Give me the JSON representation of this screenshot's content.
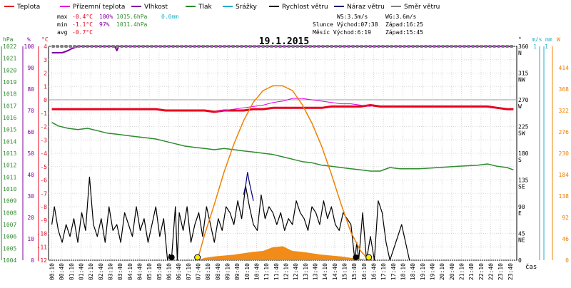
{
  "legend": [
    {
      "label": "Teplota",
      "color": "#e8001c"
    },
    {
      "label": "Přízemní teplota",
      "color": "#e000e0"
    },
    {
      "label": "Vlhkost",
      "color": "#8000a0"
    },
    {
      "label": "Tlak",
      "color": "#2e8b2e"
    },
    {
      "label": "Srážky",
      "color": "#20b0c8"
    },
    {
      "label": "Rychlost větru",
      "color": "#000000"
    },
    {
      "label": "Náraz větru",
      "color": "#00007a"
    },
    {
      "label": "Směr větru",
      "color": "#808080"
    }
  ],
  "stats": {
    "max": {
      "label": "max",
      "temp": "-0.4°C",
      "hum": "100%",
      "press": "1015.6hPa",
      "rain": "0.0mm"
    },
    "min": {
      "label": "min",
      "temp": "-1.1°C",
      "hum": "97%",
      "press": "1011.4hPa"
    },
    "avg": {
      "label": "avg",
      "temp": "-0.7°C"
    }
  },
  "info": {
    "ws": "WS:3.5m/s",
    "wg": "WG:3.6m/s",
    "sun_rise": "Slunce Východ:07:38",
    "sun_set": "Západ:16:25",
    "moon_rise": "Měsíc  Východ:6:19",
    "moon_set": "Západ:15:45"
  },
  "chart_data": {
    "type": "line",
    "title": "19.1.2015",
    "xlabel": "čas",
    "x_ticks": [
      "00:10",
      "00:40",
      "01:10",
      "01:40",
      "02:10",
      "02:40",
      "03:10",
      "03:40",
      "04:10",
      "04:40",
      "05:10",
      "05:40",
      "06:10",
      "06:40",
      "07:10",
      "07:40",
      "08:10",
      "08:40",
      "09:10",
      "09:40",
      "10:10",
      "10:40",
      "11:10",
      "11:40",
      "12:10",
      "12:40",
      "13:10",
      "13:40",
      "14:10",
      "14:40",
      "15:10",
      "15:40",
      "16:10",
      "16:40",
      "17:10",
      "17:40",
      "18:10",
      "18:40",
      "19:10",
      "19:40",
      "20:10",
      "20:40",
      "21:10",
      "21:40",
      "22:10",
      "22:40",
      "23:10",
      "23:40"
    ],
    "axes": {
      "hpa": {
        "unit": "hPa",
        "min": 1004,
        "max": 1022,
        "ticks": [
          1004,
          1005,
          1006,
          1007,
          1008,
          1009,
          1010,
          1011,
          1012,
          1013,
          1014,
          1015,
          1016,
          1017,
          1018,
          1019,
          1020,
          1021,
          1022
        ],
        "color": "#2e8b2e"
      },
      "pct": {
        "unit": "%",
        "min": 0,
        "max": 100,
        "ticks": [
          0,
          10,
          20,
          30,
          40,
          50,
          60,
          70,
          80,
          90,
          100
        ],
        "color": "#8000a0"
      },
      "temp": {
        "unit": "°C",
        "min": -12,
        "max": 4,
        "ticks": [
          -12,
          -11,
          -10,
          -9,
          -8,
          -7,
          -6,
          -5,
          -4,
          -3,
          -2,
          -1,
          0,
          1,
          2,
          3,
          4
        ],
        "color": "#e8001c"
      },
      "dir": {
        "unit": "°",
        "min": 0,
        "max": 360,
        "ticks": [
          0,
          45,
          90,
          135,
          180,
          225,
          270,
          315,
          360
        ],
        "labels": [
          "",
          "NE",
          "E",
          "SE",
          "S",
          "SW",
          "W",
          "NW",
          "N"
        ],
        "color": "#000000"
      },
      "wind": {
        "unit": "m/s",
        "min": 0,
        "max": 1,
        "ticks": [
          1
        ],
        "color": "#20b0c8"
      },
      "rain": {
        "unit": "mm",
        "min": 0,
        "max": 1,
        "ticks": [
          1
        ],
        "color": "#20b0c8"
      },
      "solar": {
        "unit": "W",
        "min": 0,
        "max": 460,
        "ticks": [
          0,
          46,
          92,
          138,
          184,
          230,
          276,
          322,
          368,
          414
        ],
        "color": "#f08000"
      }
    },
    "series": [
      {
        "name": "Teplota",
        "axis": "temp",
        "color": "#e8001c",
        "x": [
          0.17,
          1,
          2,
          3,
          4,
          5,
          5.5,
          6,
          6.5,
          7,
          7.5,
          8,
          8.5,
          9,
          9.5,
          10,
          10.5,
          11,
          11.5,
          12,
          12.5,
          13,
          13.5,
          14,
          14.5,
          15,
          15.5,
          16,
          16.5,
          17,
          18,
          19,
          20,
          21,
          22,
          22.5,
          23,
          23.5,
          23.83
        ],
        "y": [
          -0.7,
          -0.7,
          -0.7,
          -0.7,
          -0.7,
          -0.7,
          -0.7,
          -0.8,
          -0.8,
          -0.8,
          -0.8,
          -0.8,
          -0.9,
          -0.8,
          -0.8,
          -0.8,
          -0.7,
          -0.7,
          -0.6,
          -0.6,
          -0.6,
          -0.6,
          -0.6,
          -0.6,
          -0.5,
          -0.5,
          -0.5,
          -0.5,
          -0.4,
          -0.5,
          -0.5,
          -0.5,
          -0.5,
          -0.5,
          -0.5,
          -0.5,
          -0.6,
          -0.7,
          -0.7
        ]
      },
      {
        "name": "Přízemní teplota",
        "axis": "temp",
        "color": "#e000e0",
        "x": [
          8.5,
          9,
          9.5,
          10,
          10.5,
          11,
          11.5,
          12,
          12.5,
          13,
          13.5,
          14,
          14.5,
          15,
          15.5,
          16,
          16.5
        ],
        "y": [
          -0.9,
          -0.8,
          -0.7,
          -0.6,
          -0.5,
          -0.4,
          -0.2,
          -0.1,
          0.1,
          0.1,
          0.0,
          -0.1,
          -0.2,
          -0.3,
          -0.3,
          -0.4,
          -0.5
        ]
      },
      {
        "name": "Vlhkost",
        "axis": "pct",
        "color": "#8000a0",
        "x": [
          0.17,
          0.7,
          1.0,
          1.2,
          1.5,
          2,
          3,
          3.4,
          3.5,
          3.6,
          4,
          6,
          10,
          15,
          20,
          23.83
        ],
        "y": [
          97,
          97,
          98,
          99,
          100,
          100,
          100,
          100,
          98,
          100,
          100,
          100,
          100,
          100,
          100,
          100
        ]
      },
      {
        "name": "Tlak",
        "axis": "hpa",
        "color": "#2e8b2e",
        "x": [
          0.17,
          0.5,
          1,
          1.5,
          2,
          2.5,
          3,
          3.5,
          4,
          4.5,
          5,
          5.5,
          6,
          6.5,
          7,
          7.5,
          8,
          8.5,
          9,
          9.5,
          10,
          10.5,
          11,
          11.5,
          12,
          12.5,
          13,
          13.5,
          14,
          14.5,
          15,
          15.5,
          16,
          16.5,
          17,
          17.5,
          18,
          19,
          20,
          21,
          22,
          22.5,
          23,
          23.5,
          23.83
        ],
        "y": [
          1015.6,
          1015.3,
          1015.1,
          1015.0,
          1015.1,
          1014.9,
          1014.7,
          1014.6,
          1014.5,
          1014.4,
          1014.3,
          1014.2,
          1014.0,
          1013.8,
          1013.6,
          1013.5,
          1013.4,
          1013.3,
          1013.4,
          1013.3,
          1013.2,
          1013.1,
          1013.0,
          1012.9,
          1012.7,
          1012.5,
          1012.3,
          1012.2,
          1012.0,
          1011.9,
          1011.8,
          1011.7,
          1011.6,
          1011.5,
          1011.5,
          1011.8,
          1011.7,
          1011.7,
          1011.8,
          1011.9,
          1012.0,
          1012.1,
          1011.9,
          1011.8,
          1011.6
        ]
      },
      {
        "name": "Rychlost větru",
        "axis": "dir",
        "color": "#000000",
        "x": [
          0.17,
          0.3,
          0.5,
          0.7,
          0.9,
          1.1,
          1.3,
          1.5,
          1.7,
          1.9,
          2.1,
          2.3,
          2.5,
          2.7,
          2.9,
          3.1,
          3.3,
          3.5,
          3.7,
          3.9,
          4.1,
          4.3,
          4.5,
          4.7,
          4.9,
          5.1,
          5.3,
          5.5,
          5.7,
          5.9,
          6.1,
          6.2,
          6.3,
          6.5,
          6.6,
          6.7,
          6.9,
          7.1,
          7.3,
          7.5,
          7.7,
          7.9,
          8.1,
          8.3,
          8.5,
          8.7,
          8.9,
          9.1,
          9.3,
          9.5,
          9.7,
          9.9,
          10.1,
          10.3,
          10.5,
          10.7,
          10.9,
          11.1,
          11.3,
          11.5,
          11.7,
          11.9,
          12.1,
          12.3,
          12.5,
          12.7,
          12.9,
          13.1,
          13.3,
          13.5,
          13.7,
          13.9,
          14.1,
          14.3,
          14.5,
          14.7,
          14.9,
          15.1,
          15.3,
          15.5,
          15.7,
          15.8,
          15.9,
          16.1,
          16.3,
          16.5,
          16.7,
          16.9,
          17.1,
          17.3,
          17.5,
          17.7,
          17.9,
          18.1,
          18.3,
          18.5
        ],
        "y": [
          60,
          90,
          50,
          30,
          60,
          40,
          70,
          30,
          80,
          50,
          140,
          60,
          40,
          70,
          30,
          90,
          50,
          60,
          30,
          80,
          60,
          40,
          90,
          50,
          70,
          30,
          60,
          90,
          40,
          70,
          0,
          10,
          0,
          90,
          0,
          80,
          50,
          90,
          30,
          60,
          80,
          40,
          90,
          60,
          30,
          70,
          50,
          90,
          80,
          60,
          100,
          70,
          125,
          90,
          60,
          50,
          110,
          70,
          90,
          80,
          60,
          80,
          50,
          70,
          60,
          100,
          80,
          70,
          50,
          90,
          80,
          60,
          100,
          70,
          90,
          60,
          50,
          80,
          70,
          60,
          0,
          30,
          0,
          80,
          0,
          40,
          0,
          100,
          80,
          30,
          0,
          20,
          40,
          60,
          30,
          0
        ]
      },
      {
        "name": "Náraz větru",
        "axis": "dir",
        "color": "#00007a",
        "x": [
          10.0,
          10.1,
          10.2,
          10.3,
          10.4,
          10.5
        ],
        "y": [
          110,
          125,
          148,
          130,
          115,
          100
        ]
      },
      {
        "name": "Směr větru",
        "axis": "dir",
        "color": "#808080",
        "x": [
          0.17,
          23.83
        ],
        "y": [
          360,
          360
        ]
      },
      {
        "name": "Sluneční záření",
        "axis": "solar",
        "color": "#f08000",
        "x": [
          7.63,
          8,
          8.5,
          9,
          9.5,
          10,
          10.5,
          11,
          11.5,
          12,
          12.5,
          13,
          13.5,
          14,
          14.5,
          15,
          15.5,
          16,
          16.42
        ],
        "y": [
          0,
          55,
          120,
          190,
          250,
          300,
          340,
          365,
          375,
          375,
          365,
          335,
          295,
          245,
          185,
          120,
          60,
          20,
          0
        ]
      },
      {
        "name": "Naměřené záření",
        "axis": "solar",
        "color": "#f08000",
        "x": [
          7.63,
          8,
          8.5,
          9,
          9.5,
          10,
          10.5,
          11,
          11.5,
          12,
          12.5,
          13,
          13.5,
          14,
          14.5,
          15,
          15.5,
          16,
          16.42
        ],
        "y": [
          0,
          5,
          8,
          10,
          12,
          15,
          18,
          20,
          28,
          30,
          20,
          18,
          15,
          12,
          10,
          8,
          5,
          3,
          0
        ]
      }
    ]
  }
}
